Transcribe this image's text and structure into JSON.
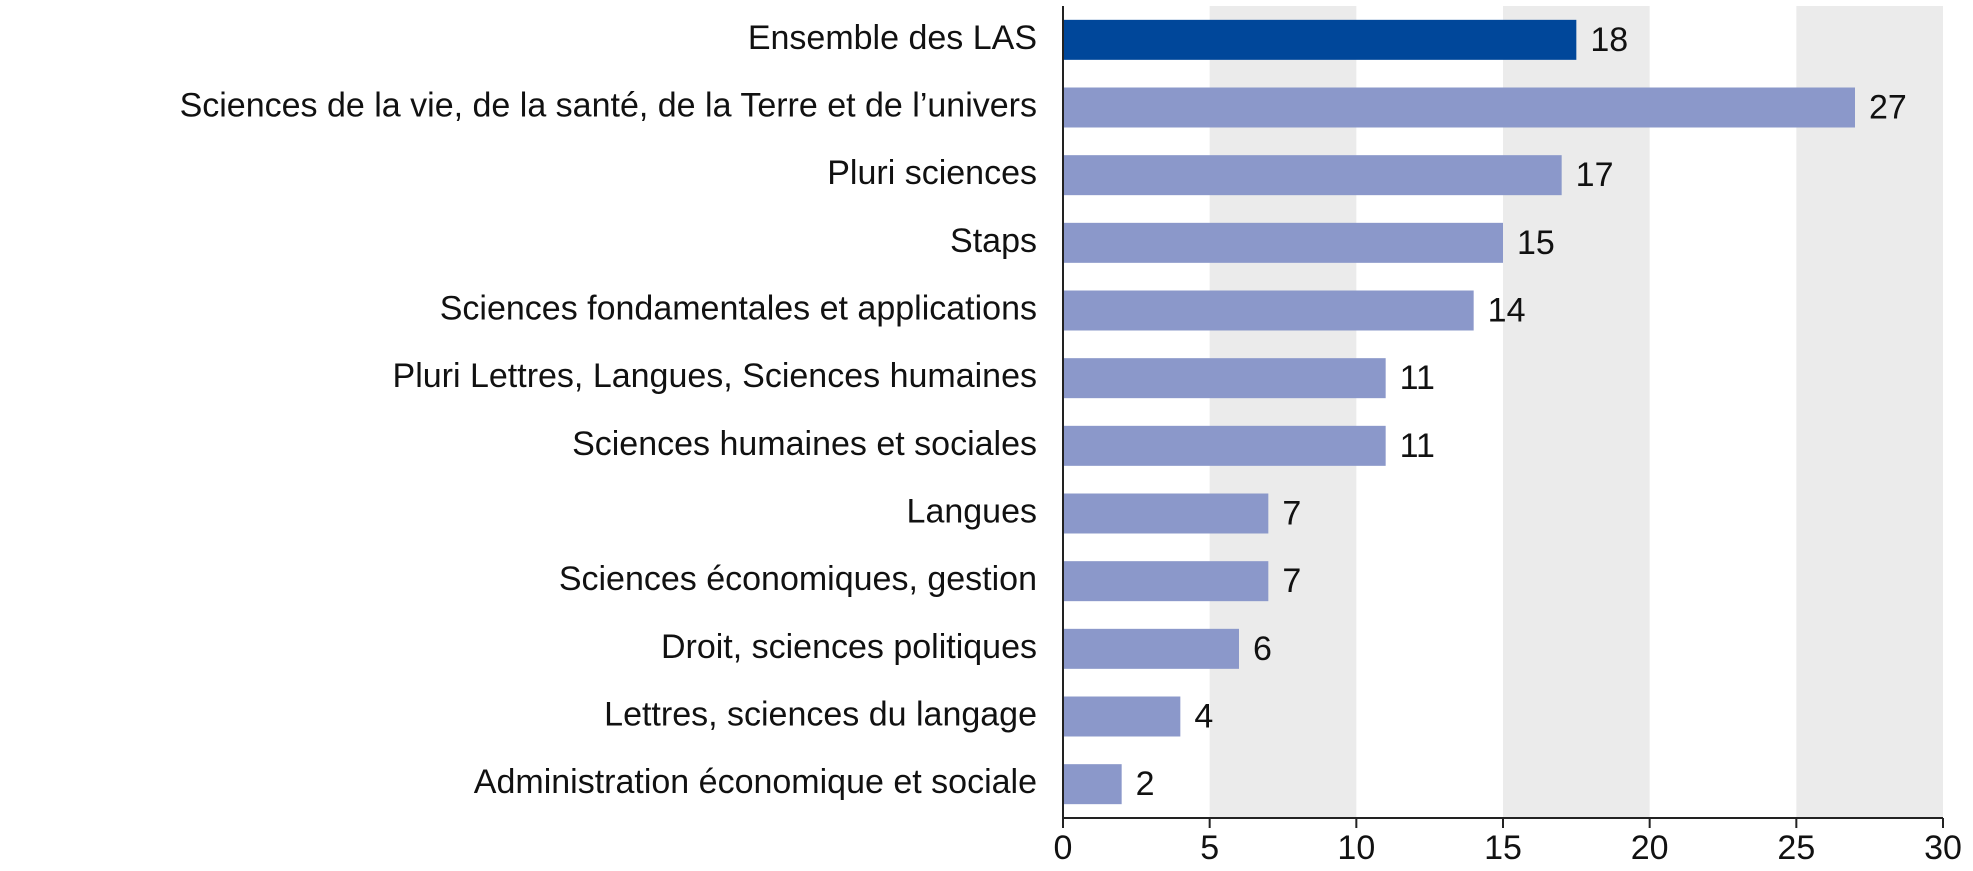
{
  "chart_data": {
    "type": "bar",
    "orientation": "horizontal",
    "categories": [
      "Ensemble des LAS",
      "Sciences de la vie, de la santé, de la Terre et de l’univers",
      "Pluri sciences",
      "Staps",
      "Sciences fondamentales et applications",
      "Pluri Lettres, Langues, Sciences humaines",
      "Sciences humaines et sociales",
      "Langues",
      "Sciences économiques, gestion",
      "Droit, sciences politiques",
      "Lettres, sciences du langage",
      "Administration économique et sociale"
    ],
    "values": [
      17.5,
      27,
      17,
      15,
      14,
      11,
      11,
      7,
      7,
      6,
      4,
      2
    ],
    "value_labels": [
      "18",
      "27",
      "17",
      "15",
      "14",
      "11",
      "11",
      "7",
      "7",
      "6",
      "4",
      "2"
    ],
    "colors": [
      "#00479a",
      "#8b98ca",
      "#8b98ca",
      "#8b98ca",
      "#8b98ca",
      "#8b98ca",
      "#8b98ca",
      "#8b98ca",
      "#8b98ca",
      "#8b98ca",
      "#8b98ca",
      "#8b98ca"
    ],
    "xlim": [
      0,
      30
    ],
    "xticks": [
      0,
      5,
      10,
      15,
      20,
      25,
      30
    ],
    "grid": true,
    "grid_color": "#ebebeb"
  }
}
